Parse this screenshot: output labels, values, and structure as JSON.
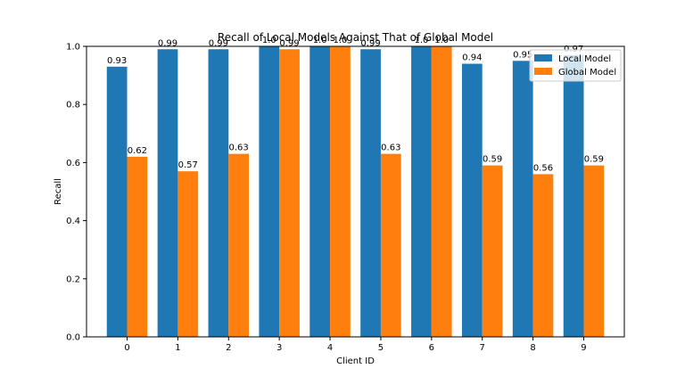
{
  "chart_data": {
    "type": "bar",
    "title": "Recall of Local Models Against That of Global Model",
    "xlabel": "Client ID",
    "ylabel": "Recall",
    "categories": [
      "0",
      "1",
      "2",
      "3",
      "4",
      "5",
      "6",
      "7",
      "8",
      "9"
    ],
    "ylim": [
      0,
      1.0
    ],
    "yticks": [
      "0.0",
      "0.2",
      "0.4",
      "0.6",
      "0.8",
      "1.0"
    ],
    "grid": false,
    "legend_position": "top-right",
    "series": [
      {
        "name": "Local Model",
        "color": "#1f77b4",
        "values": [
          0.93,
          0.99,
          0.99,
          1.0,
          1.0,
          0.99,
          1.0,
          0.94,
          0.95,
          0.97
        ],
        "labels": [
          "0.93",
          "0.99",
          "0.99",
          "1.0",
          "1.0",
          "0.99",
          "1.0",
          "0.94",
          "0.95",
          "0.97"
        ]
      },
      {
        "name": "Global Model",
        "color": "#ff7f0e",
        "values": [
          0.62,
          0.57,
          0.63,
          0.99,
          1.0,
          0.63,
          1.0,
          0.59,
          0.56,
          0.59
        ],
        "labels": [
          "0.62",
          "0.57",
          "0.63",
          "0.99",
          "1.0",
          "0.63",
          "1.0",
          "0.59",
          "0.56",
          "0.59"
        ]
      }
    ]
  }
}
